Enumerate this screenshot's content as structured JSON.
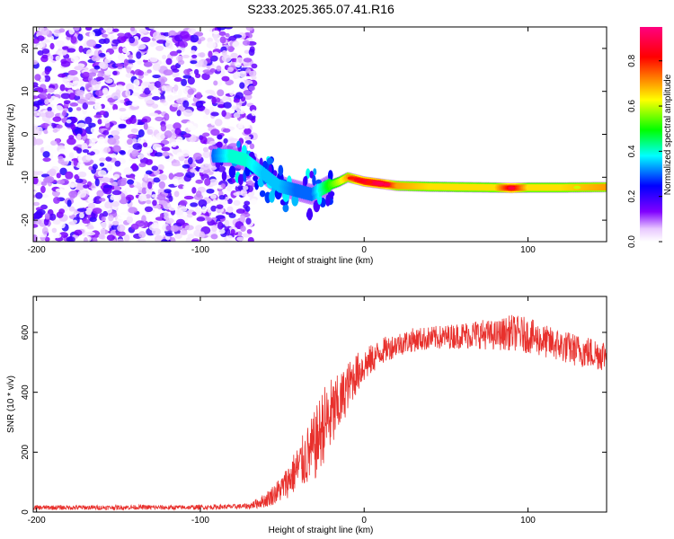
{
  "title": "S233.2025.365.07.41.R16",
  "colorbar": {
    "label": "Normalized spectral amplitude",
    "ticks": [
      0.0,
      0.2,
      0.4,
      0.6,
      0.8
    ],
    "tick_labels": [
      "0.0",
      "0.2",
      "0.4",
      "0.6",
      "0.8"
    ],
    "range": [
      0,
      0.95
    ],
    "colors": [
      "#ffffff",
      "#8000ff",
      "#0000ff",
      "#00ffff",
      "#00ff00",
      "#ffff00",
      "#ff8000",
      "#ff0000",
      "#ff0080"
    ]
  },
  "chart_data": [
    {
      "type": "heatmap",
      "title": "",
      "xlabel": "Height of straight line (km)",
      "ylabel": "Frequency (Hz)",
      "xlim": [
        -202,
        148
      ],
      "ylim": [
        -25,
        25
      ],
      "xticks": [
        -200,
        -100,
        0,
        100
      ],
      "xtick_labels": [
        "-200",
        "-100",
        "0",
        "100"
      ],
      "yticks": [
        -20,
        -10,
        0,
        10,
        20
      ],
      "ytick_labels": [
        "-20",
        "-10",
        "0",
        "10",
        "20"
      ],
      "noise_region_x": [
        -202,
        -67
      ],
      "tone_ridge": {
        "x": [
          -92,
          -82,
          -72,
          -62,
          -52,
          -42,
          -32,
          -22,
          -15,
          -10,
          -5,
          0,
          10,
          20,
          40,
          60,
          80,
          90,
          100,
          120,
          148
        ],
        "frequency": [
          -5,
          -5,
          -6,
          -9,
          -12,
          -13,
          -14,
          -12,
          -11,
          -10,
          -10.5,
          -11,
          -11.5,
          -12,
          -12.2,
          -12.3,
          -12.4,
          -12.5,
          -12.4,
          -12.4,
          -12.3
        ],
        "amplitude": [
          0.3,
          0.4,
          0.4,
          0.35,
          0.35,
          0.3,
          0.3,
          0.5,
          0.6,
          0.7,
          0.8,
          0.85,
          0.9,
          0.7,
          0.65,
          0.65,
          0.65,
          0.85,
          0.65,
          0.65,
          0.7
        ]
      }
    },
    {
      "type": "line",
      "title": "",
      "xlabel": "Height of straight line (km)",
      "ylabel": "SNR (10 * v/v)",
      "xlim": [
        -202,
        148
      ],
      "ylim": [
        0,
        720
      ],
      "xticks": [
        -200,
        -100,
        0,
        100
      ],
      "xtick_labels": [
        "-200",
        "-100",
        "0",
        "100"
      ],
      "yticks": [
        0,
        200,
        400,
        600
      ],
      "ytick_labels": [
        "0",
        "200",
        "400",
        "600"
      ],
      "series": [
        {
          "name": "SNR",
          "color": "#e8302c",
          "x": [
            -202,
            -180,
            -160,
            -140,
            -120,
            -100,
            -80,
            -70,
            -60,
            -50,
            -40,
            -30,
            -25,
            -20,
            -15,
            -10,
            -5,
            0,
            5,
            10,
            20,
            30,
            40,
            50,
            60,
            70,
            80,
            90,
            100,
            110,
            120,
            130,
            140,
            148
          ],
          "y": [
            15,
            15,
            15,
            16,
            15,
            16,
            18,
            20,
            40,
            80,
            150,
            220,
            290,
            320,
            360,
            420,
            460,
            490,
            510,
            535,
            560,
            575,
            580,
            585,
            590,
            595,
            590,
            600,
            590,
            570,
            555,
            540,
            530,
            525
          ],
          "jitter": [
            8,
            8,
            8,
            8,
            8,
            8,
            8,
            10,
            25,
            45,
            80,
            120,
            130,
            130,
            100,
            80,
            70,
            60,
            50,
            45,
            40,
            40,
            40,
            40,
            45,
            50,
            50,
            60,
            60,
            55,
            55,
            55,
            55,
            55
          ]
        }
      ]
    }
  ]
}
